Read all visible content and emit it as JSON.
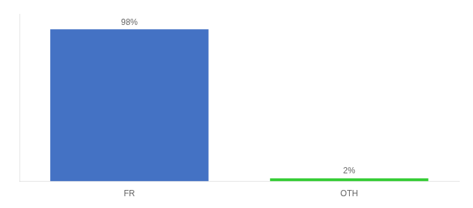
{
  "chart_data": {
    "type": "bar",
    "categories": [
      "FR",
      "OTH"
    ],
    "values": [
      98,
      2
    ],
    "value_labels": [
      "98%",
      "2%"
    ],
    "colors": [
      "#4472c4",
      "#33cc33"
    ],
    "data_labels": true,
    "ylim": [
      0,
      108
    ],
    "tick_labels": "x",
    "grid": false
  }
}
